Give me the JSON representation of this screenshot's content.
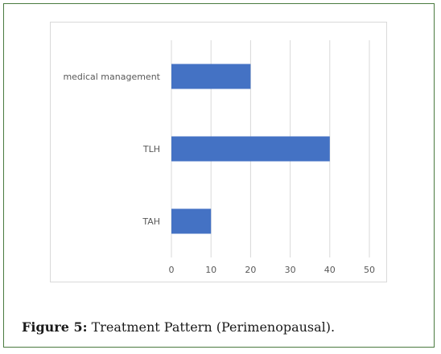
{
  "chart_data": {
    "type": "bar",
    "orientation": "horizontal",
    "categories": [
      "medical management",
      "TLH",
      "TAH"
    ],
    "values": [
      20,
      40,
      10
    ],
    "xticks": [
      0,
      10,
      20,
      30,
      40,
      50
    ],
    "xlim": [
      0,
      50
    ],
    "grid": true,
    "legend": "none",
    "bar_color": "#4472C4",
    "title": "",
    "xlabel": "",
    "ylabel": ""
  },
  "caption": {
    "label": "Figure 5:",
    "text": " Treatment Pattern (Perimenopausal)."
  },
  "colors": {
    "frame_border": "#4a7a3f",
    "gridline": "#d9d9d9",
    "axis_text": "#595959"
  }
}
